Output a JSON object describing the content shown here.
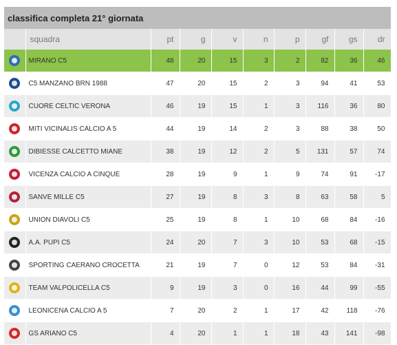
{
  "title": "classifica completa 21° giornata",
  "columns": {
    "team": "squadra",
    "pt": "pt",
    "g": "g",
    "v": "v",
    "n": "n",
    "p": "p",
    "gf": "gf",
    "gs": "gs",
    "dr": "dr"
  },
  "rows": [
    {
      "team": "MIRANO C5",
      "pt": "48",
      "g": "20",
      "v": "15",
      "n": "3",
      "p": "2",
      "gf": "82",
      "gs": "36",
      "dr": "46",
      "icon": "mirano-logo-icon",
      "color": "#2f6fb3",
      "highlight": true
    },
    {
      "team": "C5 MANZANO BRN 1988",
      "pt": "47",
      "g": "20",
      "v": "15",
      "n": "2",
      "p": "3",
      "gf": "94",
      "gs": "41",
      "dr": "53",
      "icon": "manzano-logo-icon",
      "color": "#1d4e8c"
    },
    {
      "team": "CUORE CELTIC VERONA",
      "pt": "46",
      "g": "19",
      "v": "15",
      "n": "1",
      "p": "3",
      "gf": "116",
      "gs": "36",
      "dr": "80",
      "icon": "celtic-logo-icon",
      "color": "#2aa7c9"
    },
    {
      "team": "MITI VICINALIS CALCIO A 5",
      "pt": "44",
      "g": "19",
      "v": "14",
      "n": "2",
      "p": "3",
      "gf": "88",
      "gs": "38",
      "dr": "50",
      "icon": "miti-logo-icon",
      "color": "#c9252c"
    },
    {
      "team": "DIBIESSE CALCETTO MIANE",
      "pt": "38",
      "g": "19",
      "v": "12",
      "n": "2",
      "p": "5",
      "gf": "131",
      "gs": "57",
      "dr": "74",
      "icon": "dibiesse-logo-icon",
      "color": "#2e9a3a"
    },
    {
      "team": "VICENZA CALCIO A CINQUE",
      "pt": "28",
      "g": "19",
      "v": "9",
      "n": "1",
      "p": "9",
      "gf": "74",
      "gs": "91",
      "dr": "-17",
      "icon": "vicenza-logo-icon",
      "color": "#c41e3a"
    },
    {
      "team": "SANVE MILLE C5",
      "pt": "27",
      "g": "19",
      "v": "8",
      "n": "3",
      "p": "8",
      "gf": "63",
      "gs": "58",
      "dr": "5",
      "icon": "sanve-logo-icon",
      "color": "#b0233c"
    },
    {
      "team": "UNION DIAVOLI C5",
      "pt": "25",
      "g": "19",
      "v": "8",
      "n": "1",
      "p": "10",
      "gf": "68",
      "gs": "84",
      "dr": "-16",
      "icon": "diavoli-logo-icon",
      "color": "#c8a31a"
    },
    {
      "team": "A.A. PUPI C5",
      "pt": "24",
      "g": "20",
      "v": "7",
      "n": "3",
      "p": "10",
      "gf": "53",
      "gs": "68",
      "dr": "-15",
      "icon": "pupi-logo-icon",
      "color": "#222222"
    },
    {
      "team": "SPORTING CAERANO CROCETTA",
      "pt": "21",
      "g": "19",
      "v": "7",
      "n": "0",
      "p": "12",
      "gf": "53",
      "gs": "84",
      "dr": "-31",
      "icon": "sporting-logo-icon",
      "color": "#444444"
    },
    {
      "team": "TEAM VALPOLICELLA C5",
      "pt": "9",
      "g": "19",
      "v": "3",
      "n": "0",
      "p": "16",
      "gf": "44",
      "gs": "99",
      "dr": "-55",
      "icon": "valpolicella-logo-icon",
      "color": "#e0b21f"
    },
    {
      "team": "LEONICENA CALCIO A 5",
      "pt": "7",
      "g": "20",
      "v": "2",
      "n": "1",
      "p": "17",
      "gf": "42",
      "gs": "118",
      "dr": "-76",
      "icon": "leonicena-logo-icon",
      "color": "#3a8fd0"
    },
    {
      "team": "GS ARIANO C5",
      "pt": "4",
      "g": "20",
      "v": "1",
      "n": "1",
      "p": "18",
      "gf": "43",
      "gs": "141",
      "dr": "-98",
      "icon": "ariano-logo-icon",
      "color": "#d42a2a"
    }
  ]
}
